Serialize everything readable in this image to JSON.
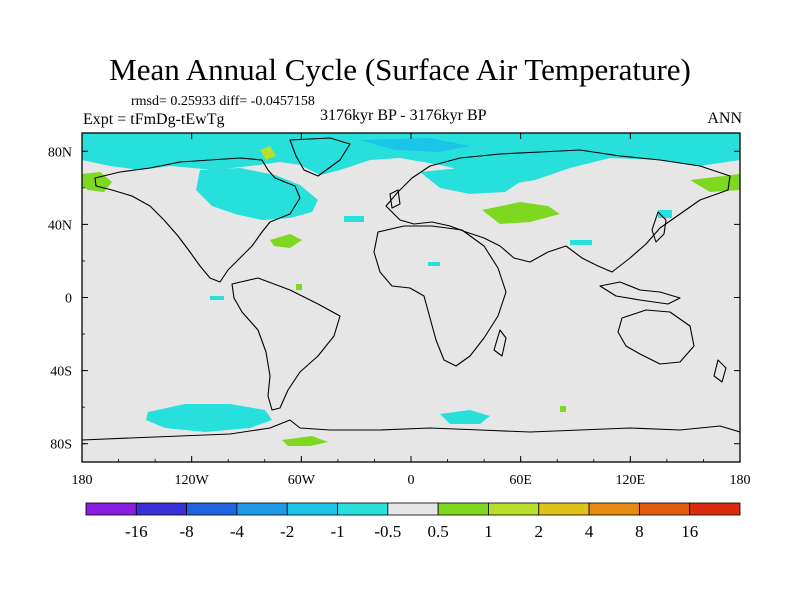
{
  "title": "Mean Annual Cycle (Surface Air Temperature)",
  "stats": "rmsd= 0.25933 diff= -0.0457158",
  "experiment": "Expt = tFmDg-tEwTg",
  "period": "3176kyr BP - 3176kyr BP",
  "season": "ANN",
  "map": {
    "lon_range": [
      -180,
      180
    ],
    "lat_range": [
      -90,
      90
    ],
    "x_ticks": [
      {
        "lon": -180,
        "label": "180"
      },
      {
        "lon": -120,
        "label": "120W"
      },
      {
        "lon": -60,
        "label": "60W"
      },
      {
        "lon": 0,
        "label": "0"
      },
      {
        "lon": 60,
        "label": "60E"
      },
      {
        "lon": 120,
        "label": "120E"
      },
      {
        "lon": 180,
        "label": "180"
      }
    ],
    "y_ticks": [
      {
        "lat": 80,
        "label": "80N"
      },
      {
        "lat": 40,
        "label": "40N"
      },
      {
        "lat": 0,
        "label": "0"
      },
      {
        "lat": -40,
        "label": "40S"
      },
      {
        "lat": -80,
        "label": "80S"
      }
    ],
    "background_color": "#e6e6e6"
  },
  "colorbar": {
    "colors": [
      "#8a1de0",
      "#3b2fd6",
      "#1f64e0",
      "#1e9ae6",
      "#1dc4ea",
      "#27e0dc",
      "#e6e6e6",
      "#7ed81f",
      "#b8e02b",
      "#e0c21a",
      "#e68a12",
      "#e05a10",
      "#dc2b0e"
    ],
    "labels": [
      "-16",
      "-8",
      "-4",
      "-2",
      "-1",
      "-0.5",
      "0.5",
      "1",
      "2",
      "4",
      "8",
      "16"
    ]
  }
}
